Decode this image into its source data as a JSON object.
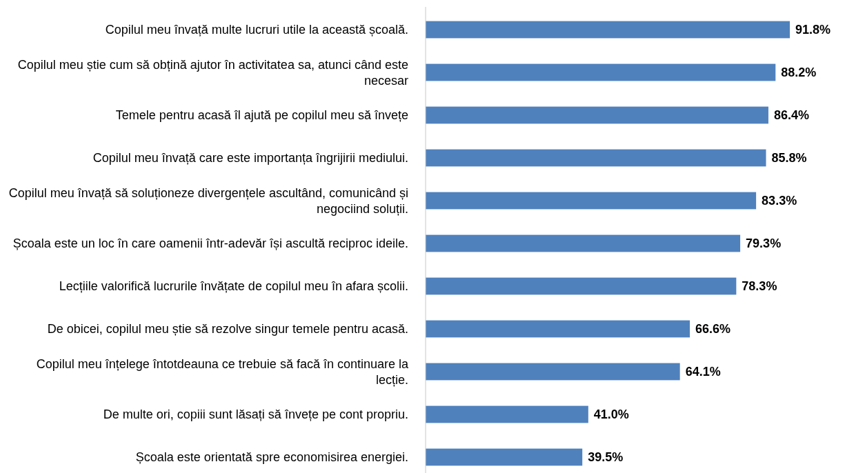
{
  "chart_data": {
    "type": "bar",
    "orientation": "horizontal",
    "color": "#4f81bd",
    "categories": [
      "Copilul meu învață multe lucruri utile la această școală.",
      "Copilul meu știe cum să obțină ajutor în activitatea sa, atunci când este necesar",
      "Temele pentru acasă îl ajută pe copilul meu să învețe",
      "Copilul meu învață care este importanța îngrijirii mediului.",
      "Copilul meu învață să soluționeze divergențele ascultând, comunicând și negociind soluții.",
      "Școala este un loc în care oamenii într-adevăr își ascultă reciproc ideile.",
      "Lecțiile valorifică lucrurile învățate de copilul meu în afara școlii.",
      "De obicei, copilul meu știe să rezolve singur temele pentru acasă.",
      "Copilul meu înțelege întotdeauna ce trebuie să facă în continuare la lecție.",
      "De multe ori, copiii sunt lăsați să învețe pe cont propriu.",
      "Școala este orientată spre economisirea energiei."
    ],
    "values": [
      91.8,
      88.2,
      86.4,
      85.8,
      83.3,
      79.3,
      78.3,
      66.6,
      64.1,
      41.0,
      39.5
    ],
    "value_labels": [
      "91.8%",
      "88.2%",
      "86.4%",
      "85.8%",
      "83.3%",
      "79.3%",
      "78.3%",
      "66.6%",
      "64.1%",
      "41.0%",
      "39.5%"
    ]
  }
}
